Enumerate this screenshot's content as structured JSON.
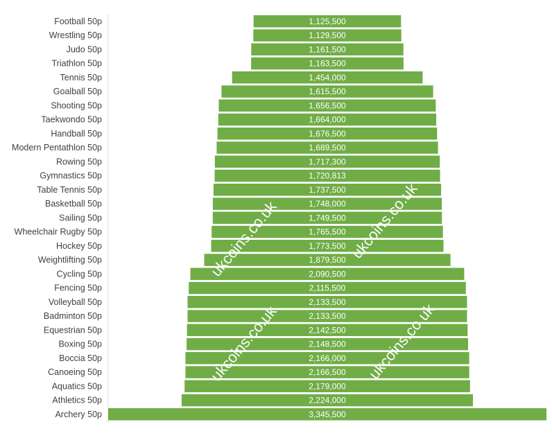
{
  "chart_data": {
    "type": "bar",
    "orientation": "horizontal",
    "layout": "centered-funnel",
    "bar_color": "#70ad47",
    "value_label_color": "#ffffff",
    "categories": [
      "Football 50p",
      "Wrestling 50p",
      "Judo 50p",
      "Triathlon 50p",
      "Tennis 50p",
      "Goalball 50p",
      "Shooting 50p",
      "Taekwondo 50p",
      "Handball 50p",
      "Modern Pentathlon 50p",
      "Rowing 50p",
      "Gymnastics 50p",
      "Table Tennis 50p",
      "Basketball 50p",
      "Sailing 50p",
      "Wheelchair Rugby 50p",
      "Hockey 50p",
      "Weightlifting 50p",
      "Cycling 50p",
      "Fencing 50p",
      "Volleyball 50p",
      "Badminton 50p",
      "Equestrian 50p",
      "Boxing 50p",
      "Boccia 50p",
      "Canoeing 50p",
      "Aquatics 50p",
      "Athletics 50p",
      "Archery 50p"
    ],
    "values": [
      1125500,
      1129500,
      1161500,
      1163500,
      1454000,
      1615500,
      1656500,
      1664000,
      1676500,
      1689500,
      1717300,
      1720813,
      1737500,
      1748000,
      1749500,
      1765500,
      1773500,
      1879500,
      2090500,
      2115500,
      2133500,
      2133500,
      2142500,
      2148500,
      2166000,
      2166500,
      2179000,
      2224000,
      3345500
    ],
    "value_labels": [
      "1,125,500",
      "1,129,500",
      "1,161,500",
      "1,163,500",
      "1,454,000",
      "1,615,500",
      "1,656,500",
      "1,664,000",
      "1,676,500",
      "1,689,500",
      "1,717,300",
      "1,720,813",
      "1,737,500",
      "1,748,000",
      "1,749,500",
      "1,765,500",
      "1,773,500",
      "1,879,500",
      "2,090,500",
      "2,115,500",
      "2,133,500",
      "2,133,500",
      "2,142,500",
      "2,148,500",
      "2,166,000",
      "2,166,500",
      "2,179,000",
      "2,224,000",
      "3,345,500"
    ],
    "xlim": [
      0,
      3345500
    ],
    "grid": false,
    "title": "",
    "xlabel": "",
    "ylabel": ""
  },
  "watermarks": [
    "ukcoins.co.uk",
    "ukcoins.co.uk",
    "ukcoins.co.uk",
    "ukcoins.co.uk"
  ]
}
